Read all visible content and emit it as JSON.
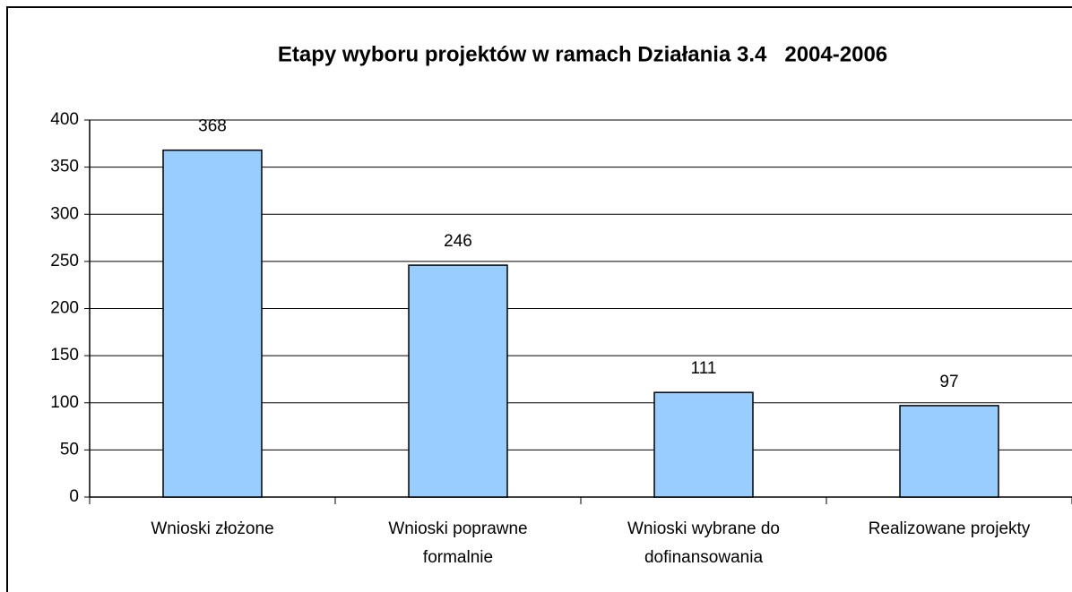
{
  "chart_data": {
    "type": "bar",
    "title": "Etapy wyboru projektów w ramach Działania 3.4   2004-2006",
    "categories": [
      "Wnioski złożone",
      "Wnioski poprawne formalnie",
      "Wnioski wybrane do dofinansowania",
      "Realizowane projekty"
    ],
    "values": [
      368,
      246,
      111,
      97
    ],
    "color": "#99ccff",
    "ylim": [
      0,
      400
    ],
    "yticks": [
      0,
      50,
      100,
      150,
      200,
      250,
      300,
      350,
      400
    ],
    "grid": true
  }
}
